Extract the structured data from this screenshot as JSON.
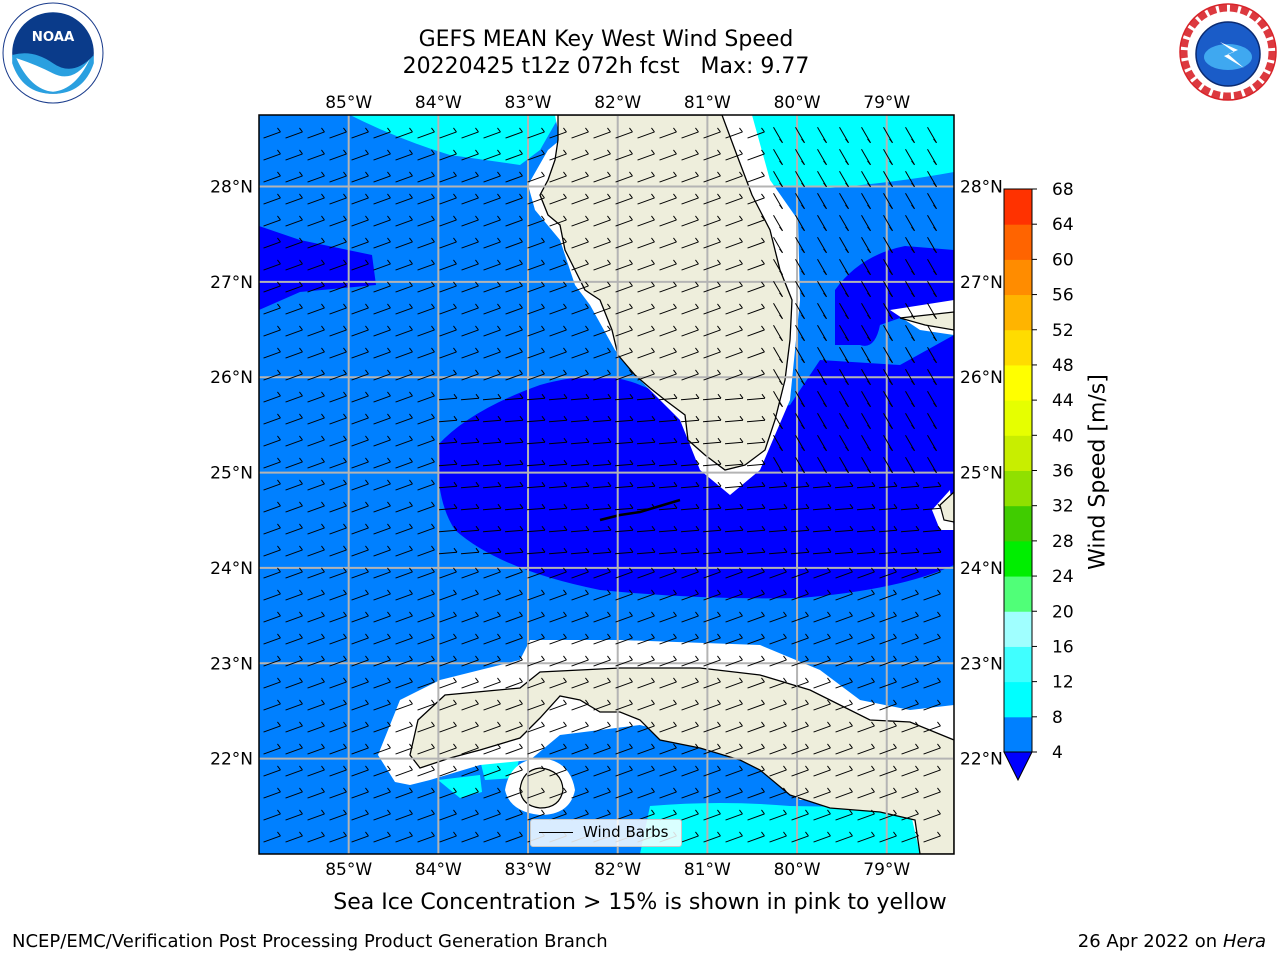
{
  "header": {
    "title_line1": "GEFS MEAN Key West Wind Speed",
    "title_line2": "20220425 t12z 072h fcst   Max: 9.77"
  },
  "logos": {
    "left": "noaa-logo",
    "right": "nws-logo",
    "left_text": "NOAA",
    "right_text": "NATIONAL WEATHER SERVICE"
  },
  "map": {
    "lon_ticks": [
      "85°W",
      "84°W",
      "83°W",
      "82°W",
      "81°W",
      "80°W",
      "79°W"
    ],
    "lat_ticks": [
      "28°N",
      "27°N",
      "26°N",
      "25°N",
      "24°N",
      "23°N",
      "22°N"
    ],
    "lon_values": [
      -85,
      -84,
      -83,
      -82,
      -81,
      -80,
      -79
    ],
    "lat_values": [
      28,
      27,
      26,
      25,
      24,
      23,
      22
    ],
    "lon_range": [
      -86,
      -78.25
    ],
    "lat_range": [
      21,
      28.75
    ],
    "legend_label": "Wind Barbs",
    "colors": {
      "land": "#eeeedc",
      "ocean_4_8": "#0080ff",
      "ocean_lt4": "#0000ff",
      "ocean_8_12": "#00ffff",
      "grid": "#b4b4b4"
    }
  },
  "colorbar": {
    "label": "Wind Speed [m/s]",
    "ticks": [
      "68",
      "64",
      "60",
      "56",
      "52",
      "48",
      "44",
      "40",
      "36",
      "32",
      "28",
      "24",
      "20",
      "16",
      "12",
      "8",
      "4"
    ],
    "bounds": [
      4,
      8,
      12,
      16,
      20,
      24,
      28,
      32,
      36,
      40,
      44,
      48,
      52,
      56,
      60,
      64,
      68
    ],
    "colors": [
      "#0080ff",
      "#00ffff",
      "#40ffff",
      "#a0ffff",
      "#50ff78",
      "#00ee00",
      "#40cc00",
      "#90e000",
      "#c8ee00",
      "#e6ff00",
      "#ffff00",
      "#ffdc00",
      "#ffb400",
      "#ff8c00",
      "#ff6400",
      "#ff3200"
    ],
    "under_color": "#0000ff"
  },
  "footer": {
    "caption": "Sea Ice Concentration > 15% is shown in pink to yellow",
    "credit": "NCEP/EMC/Verification Post Processing Product Generation Branch",
    "date": "26 Apr 2022 on",
    "host": "Hera"
  }
}
